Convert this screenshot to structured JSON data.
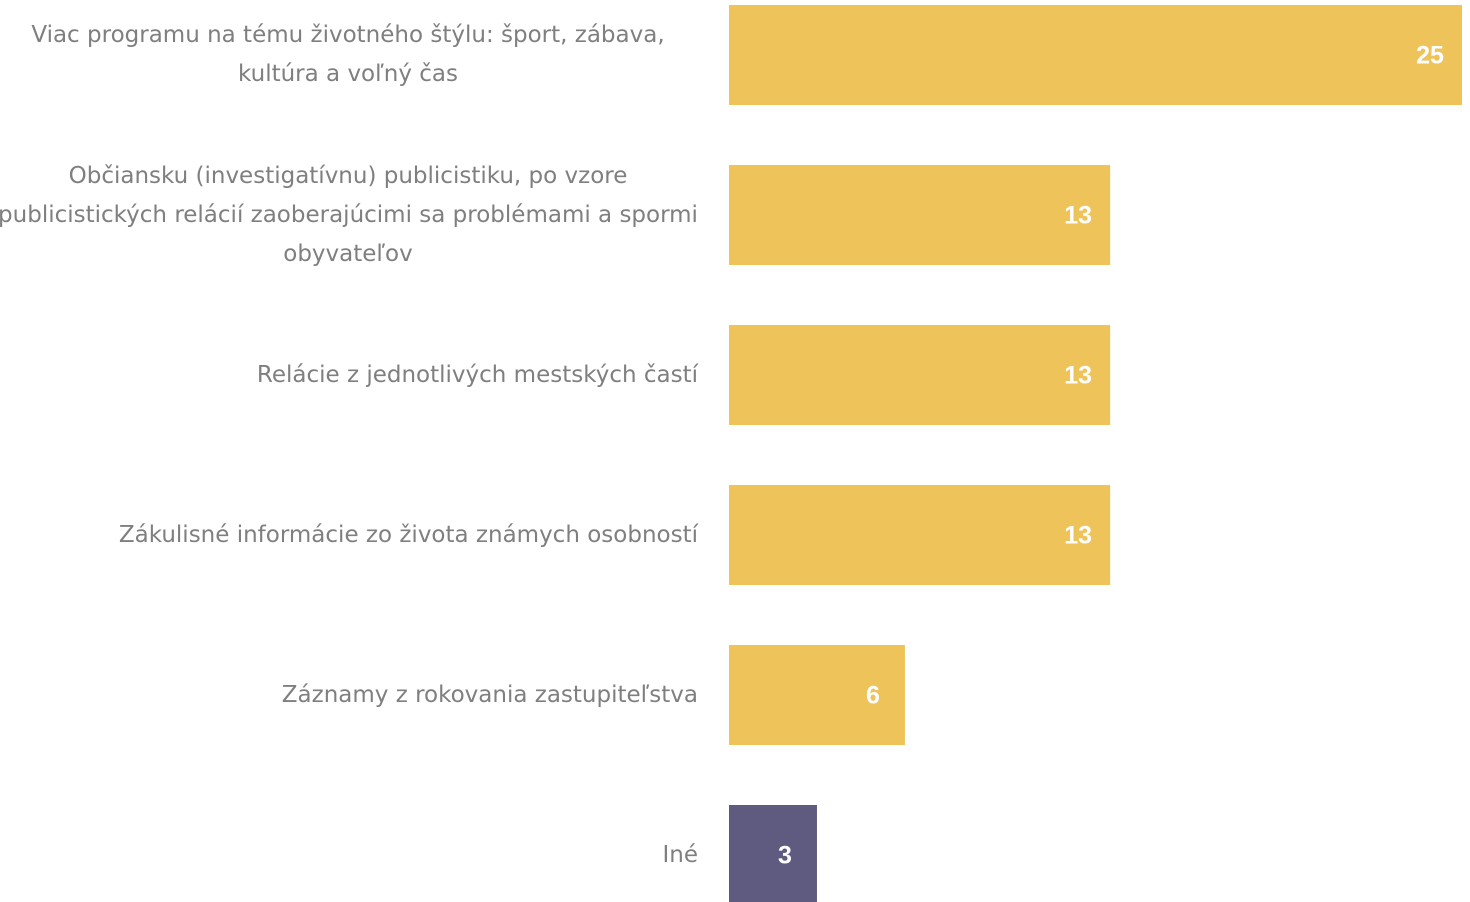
{
  "chart_data": {
    "type": "hbar",
    "categories": [
      "Viac programu na tému životného štýlu: šport, zábava, kultúra a voľný čas",
      "Občiansku (investigatívnu) publicistiku, po vzore publicistických relácií zaoberajúcimi sa problémami a spormi obyvateľov",
      "Relácie z jednotlivých mestských častí",
      "Zákulisné informácie zo života známych osobností",
      "Záznamy z rokovania zastupiteľstva",
      "Iné"
    ],
    "values": [
      25,
      13,
      13,
      13,
      6,
      3
    ],
    "colors": [
      "#eec35a",
      "#eec35a",
      "#eec35a",
      "#eec35a",
      "#eec35a",
      "#5e5a80"
    ],
    "xlim": [
      0,
      25
    ]
  }
}
